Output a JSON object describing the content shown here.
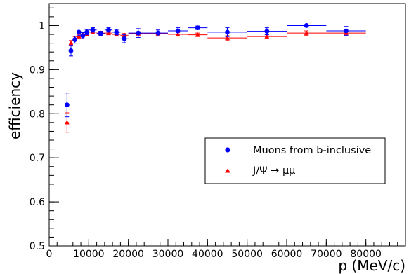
{
  "chart_data": {
    "type": "scatter",
    "xlabel": "p (MeV/c)",
    "ylabel": "efficiency",
    "xlim": [
      0,
      90000
    ],
    "ylim": [
      0.5,
      1.05
    ],
    "x_ticks": [
      0,
      10000,
      20000,
      30000,
      40000,
      50000,
      60000,
      70000,
      80000
    ],
    "y_ticks": [
      0.5,
      0.6,
      0.7,
      0.8,
      0.9,
      1
    ],
    "grid": false,
    "legend_position": "middle-right",
    "series": [
      {
        "name": "Muons from b-inclusive",
        "marker": "circle",
        "color": "#0000ff",
        "points": [
          {
            "x": 4500,
            "xerr": 500,
            "y": 0.82,
            "yerr": 0.027
          },
          {
            "x": 5500,
            "xerr": 500,
            "y": 0.943,
            "yerr": 0.012
          },
          {
            "x": 6500,
            "xerr": 500,
            "y": 0.968,
            "yerr": 0.008
          },
          {
            "x": 7500,
            "xerr": 500,
            "y": 0.985,
            "yerr": 0.007
          },
          {
            "x": 8500,
            "xerr": 500,
            "y": 0.977,
            "yerr": 0.007
          },
          {
            "x": 9500,
            "xerr": 500,
            "y": 0.985,
            "yerr": 0.006
          },
          {
            "x": 11000,
            "xerr": 1000,
            "y": 0.99,
            "yerr": 0.005
          },
          {
            "x": 13000,
            "xerr": 1000,
            "y": 0.982,
            "yerr": 0.005
          },
          {
            "x": 15000,
            "xerr": 1000,
            "y": 0.99,
            "yerr": 0.005
          },
          {
            "x": 17000,
            "xerr": 1000,
            "y": 0.985,
            "yerr": 0.006
          },
          {
            "x": 19000,
            "xerr": 1000,
            "y": 0.97,
            "yerr": 0.009
          },
          {
            "x": 22500,
            "xerr": 2500,
            "y": 0.983,
            "yerr": 0.01
          },
          {
            "x": 27500,
            "xerr": 2500,
            "y": 0.983,
            "yerr": 0.007
          },
          {
            "x": 32500,
            "xerr": 2500,
            "y": 0.988,
            "yerr": 0.007
          },
          {
            "x": 37500,
            "xerr": 2500,
            "y": 0.995,
            "yerr": 0.004
          },
          {
            "x": 45000,
            "xerr": 5000,
            "y": 0.985,
            "yerr": 0.01
          },
          {
            "x": 55000,
            "xerr": 5000,
            "y": 0.987,
            "yerr": 0.008
          },
          {
            "x": 65000,
            "xerr": 5000,
            "y": 1.0,
            "yerr": 0.002
          },
          {
            "x": 75000,
            "xerr": 5000,
            "y": 0.988,
            "yerr": 0.01
          }
        ]
      },
      {
        "name": "J/Ψ → μμ",
        "marker": "triangle",
        "color": "#ff0000",
        "points": [
          {
            "x": 4500,
            "xerr": 500,
            "y": 0.78,
            "yerr": 0.022
          },
          {
            "x": 5500,
            "xerr": 500,
            "y": 0.96,
            "yerr": 0.006
          },
          {
            "x": 6500,
            "xerr": 500,
            "y": 0.97,
            "yerr": 0.005
          },
          {
            "x": 7500,
            "xerr": 500,
            "y": 0.975,
            "yerr": 0.005
          },
          {
            "x": 8500,
            "xerr": 500,
            "y": 0.98,
            "yerr": 0.005
          },
          {
            "x": 9500,
            "xerr": 500,
            "y": 0.98,
            "yerr": 0.004
          },
          {
            "x": 11000,
            "xerr": 1000,
            "y": 0.985,
            "yerr": 0.004
          },
          {
            "x": 13000,
            "xerr": 1000,
            "y": 0.983,
            "yerr": 0.004
          },
          {
            "x": 15000,
            "xerr": 1000,
            "y": 0.983,
            "yerr": 0.004
          },
          {
            "x": 17000,
            "xerr": 1000,
            "y": 0.98,
            "yerr": 0.004
          },
          {
            "x": 19000,
            "xerr": 1000,
            "y": 0.978,
            "yerr": 0.004
          },
          {
            "x": 22500,
            "xerr": 2500,
            "y": 0.982,
            "yerr": 0.004
          },
          {
            "x": 27500,
            "xerr": 2500,
            "y": 0.982,
            "yerr": 0.004
          },
          {
            "x": 32500,
            "xerr": 2500,
            "y": 0.98,
            "yerr": 0.004
          },
          {
            "x": 37500,
            "xerr": 2500,
            "y": 0.979,
            "yerr": 0.004
          },
          {
            "x": 45000,
            "xerr": 5000,
            "y": 0.972,
            "yerr": 0.005
          },
          {
            "x": 55000,
            "xerr": 5000,
            "y": 0.975,
            "yerr": 0.005
          },
          {
            "x": 65000,
            "xerr": 5000,
            "y": 0.983,
            "yerr": 0.005
          },
          {
            "x": 75000,
            "xerr": 5000,
            "y": 0.983,
            "yerr": 0.005
          }
        ]
      }
    ]
  }
}
